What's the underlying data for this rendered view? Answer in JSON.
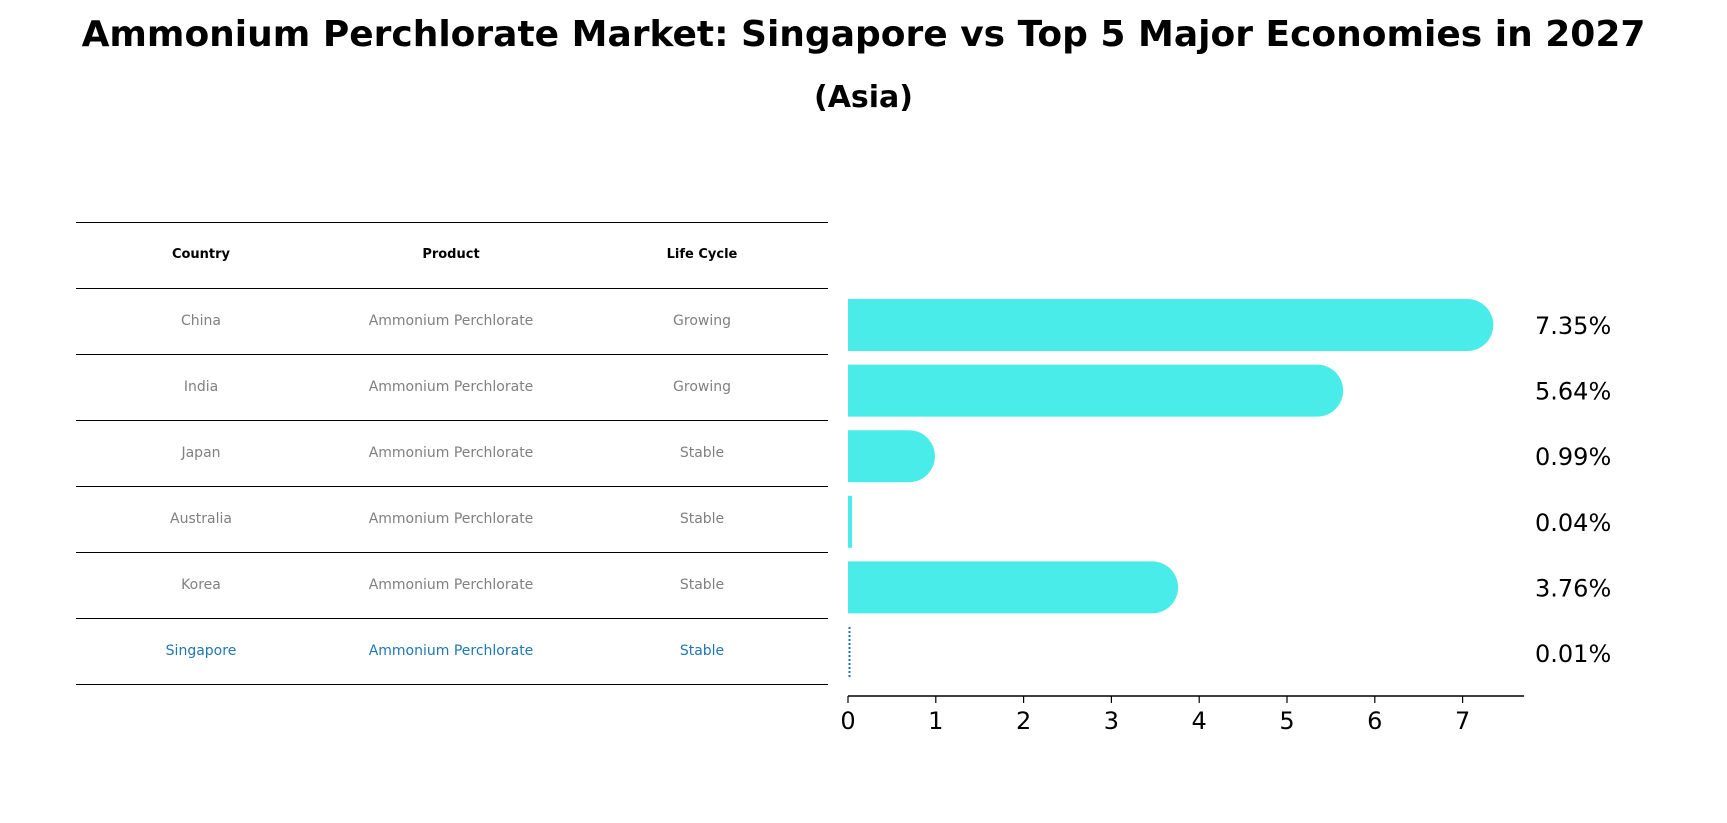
{
  "title": "Ammonium Perchlorate Market: Singapore vs Top 5 Major Economies in 2027",
  "subtitle": "(Asia)",
  "table": {
    "headers": [
      "Country",
      "Product",
      "Life Cycle"
    ],
    "rows": [
      {
        "country": "China",
        "product": "Ammonium Perchlorate",
        "life_cycle": "Growing"
      },
      {
        "country": "India",
        "product": "Ammonium Perchlorate",
        "life_cycle": "Growing"
      },
      {
        "country": "Japan",
        "product": "Ammonium Perchlorate",
        "life_cycle": "Stable"
      },
      {
        "country": "Australia",
        "product": "Ammonium Perchlorate",
        "life_cycle": "Stable"
      },
      {
        "country": "Korea",
        "product": "Ammonium Perchlorate",
        "life_cycle": "Stable"
      },
      {
        "country": "Singapore",
        "product": "Ammonium Perchlorate",
        "life_cycle": "Stable"
      }
    ]
  },
  "colors": {
    "bar": "#4aece9",
    "highlight": "#1f77b4",
    "muted_text": "#808080"
  },
  "chart_data": {
    "type": "bar",
    "orientation": "horizontal",
    "categories": [
      "China",
      "India",
      "Japan",
      "Australia",
      "Korea",
      "Singapore"
    ],
    "values": [
      7.35,
      5.64,
      0.99,
      0.04,
      3.76,
      0.01
    ],
    "value_labels": [
      "7.35%",
      "5.64%",
      "0.99%",
      "0.04%",
      "3.76%",
      "0.01%"
    ],
    "xlim": [
      0,
      7.7
    ],
    "xticks": [
      0,
      1,
      2,
      3,
      4,
      5,
      6,
      7
    ],
    "highlight_category": "Singapore",
    "grid": false,
    "legend": "none"
  }
}
